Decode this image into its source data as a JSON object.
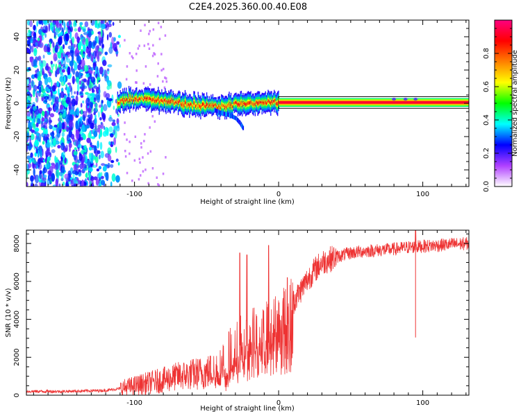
{
  "title": "C2E4.2025.360.00.40.E08",
  "chart_data": [
    {
      "type": "heatmap",
      "title": "C2E4.2025.360.00.40.E08",
      "xlabel": "Height of straight line (km)",
      "ylabel": "Frequency (Hz)",
      "xlim": [
        -175,
        132
      ],
      "ylim": [
        -50,
        50
      ],
      "xticks": [
        -100,
        0,
        100
      ],
      "yticks": [
        -40,
        -20,
        0,
        20,
        40
      ],
      "noise_region_x": [
        -175,
        -108
      ],
      "ridge_x": [
        -112,
        -100,
        -90,
        -80,
        -70,
        -60,
        -50,
        -40,
        -30,
        -20,
        -10,
        0,
        10,
        20,
        40,
        60,
        80,
        100,
        120,
        132
      ],
      "ridge_freq": [
        1,
        3,
        2,
        1.5,
        0.5,
        -1,
        -1.5,
        -2,
        -0.5,
        0.2,
        0.6,
        0.5,
        0.5,
        0.5,
        0.5,
        0.5,
        0.5,
        0.5,
        0.5,
        0.5
      ],
      "side_branch_x": [
        -45,
        -40,
        -35,
        -30,
        -27,
        -25
      ],
      "side_branch_freq": [
        -4,
        -6,
        -7,
        -9,
        -12,
        -15
      ],
      "colorbar": {
        "label": "Normalized spectral amplitude",
        "range": [
          0,
          1
        ],
        "ticks": [
          0,
          0.2,
          0.4,
          0.6,
          0.8
        ],
        "colors": [
          "#ffffff",
          "#b040ff",
          "#0000ff",
          "#00ffff",
          "#00ff00",
          "#ffff00",
          "#ff8000",
          "#ff0000",
          "#ff0080"
        ]
      }
    },
    {
      "type": "line",
      "xlabel": "Height of straight line (km)",
      "ylabel": "SNR (10 * v/v)",
      "xlim": [
        -175,
        132
      ],
      "ylim": [
        0,
        8700
      ],
      "xticks": [
        -100,
        0,
        100
      ],
      "yticks": [
        0,
        2000,
        4000,
        6000,
        8000
      ],
      "color": "#ee3333",
      "series": [
        {
          "name": "SNR",
          "x": [
            -175,
            -150,
            -120,
            -110,
            -100,
            -90,
            -80,
            -70,
            -60,
            -50,
            -40,
            -35,
            -30,
            -25,
            -20,
            -15,
            -10,
            -5,
            0,
            5,
            10,
            15,
            20,
            25,
            30,
            40,
            50,
            60,
            70,
            80,
            90,
            100,
            110,
            120,
            132
          ],
          "y": [
            200,
            200,
            250,
            350,
            500,
            650,
            800,
            1000,
            1100,
            1200,
            1500,
            1800,
            2300,
            2800,
            3000,
            3200,
            3400,
            3700,
            3900,
            4400,
            4900,
            5500,
            6100,
            6600,
            7000,
            7300,
            7500,
            7600,
            7650,
            7700,
            7800,
            7850,
            7900,
            7950,
            8000
          ]
        }
      ],
      "spikes": [
        {
          "x": -27,
          "y": 7500
        },
        {
          "x": -22,
          "y": 7400
        },
        {
          "x": -7,
          "y": 7900
        },
        {
          "x": 6,
          "y": 6200
        },
        {
          "x": 95,
          "y": 8700
        }
      ]
    }
  ]
}
